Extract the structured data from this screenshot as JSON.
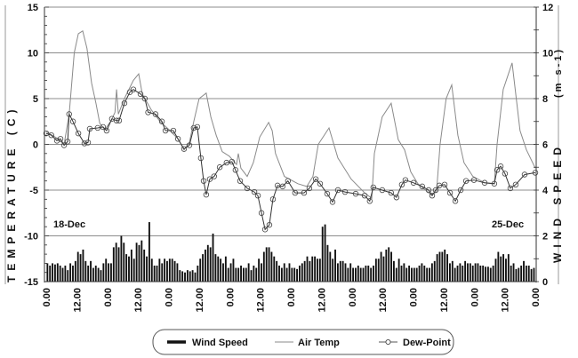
{
  "chart_data": {
    "type": "line",
    "title": "",
    "y_left": {
      "label": "TEMPERATURE (C)",
      "range": [
        -15,
        15
      ],
      "ticks": [
        "15",
        "10",
        "5",
        "0",
        "-5",
        "-10",
        "-15"
      ]
    },
    "y_right": {
      "label": "WIND SPEED",
      "unit_label": "(m s-1)",
      "range": [
        0,
        12
      ],
      "ticks": [
        "12",
        "10",
        "8",
        "6",
        "4",
        "2",
        "0"
      ]
    },
    "x_axis": {
      "unit": "hours since 18-Dec 0.00",
      "range": [
        0,
        192
      ],
      "tick_labels": [
        "0.00",
        "12.00",
        "0.00",
        "12.00",
        "0.00",
        "12.00",
        "0.00",
        "12.00",
        "0.00",
        "12.00",
        "0.00",
        "12.00",
        "0.00",
        "12.00",
        "0.00",
        "12.00",
        "0.00"
      ]
    },
    "annotations": [
      "18-Dec",
      "25-Dec"
    ],
    "grid": true,
    "legend": {
      "placement": "bottom",
      "items": [
        "Wind Speed",
        "Air Temp",
        "Dew-Point"
      ]
    },
    "series": [
      {
        "name": "Air Temp",
        "axis": "left",
        "type": "line",
        "color": "#8a8a8a",
        "points": [
          [
            0,
            1.4
          ],
          [
            3.5,
            0.8
          ],
          [
            7,
            0.0
          ],
          [
            9,
            3.3
          ],
          [
            11,
            10
          ],
          [
            12.6,
            12.1
          ],
          [
            14.3,
            12.4
          ],
          [
            16,
            10.5
          ],
          [
            17.8,
            6.7
          ],
          [
            19.5,
            4.5
          ],
          [
            21,
            2.3
          ],
          [
            23,
            1.6
          ],
          [
            25.5,
            2.6
          ],
          [
            27,
            3.5
          ],
          [
            27.6,
            6.0
          ],
          [
            28.3,
            3.3
          ],
          [
            30.7,
            5
          ],
          [
            34.2,
            7
          ],
          [
            36.3,
            7.7
          ],
          [
            37.7,
            5.5
          ],
          [
            41.2,
            3.8
          ],
          [
            44.7,
            2.5
          ],
          [
            48.2,
            1.6
          ],
          [
            51.7,
            0.6
          ],
          [
            54.1,
            -0.6
          ],
          [
            56.2,
            0.2
          ],
          [
            57.9,
            2.5
          ],
          [
            60,
            5
          ],
          [
            62.8,
            5.6
          ],
          [
            64.6,
            3
          ],
          [
            66.7,
            1
          ],
          [
            69.1,
            -0.8
          ],
          [
            71.9,
            -1.3
          ],
          [
            74.7,
            -2.2
          ],
          [
            75.4,
            -1
          ],
          [
            76.4,
            -2.6
          ],
          [
            78.9,
            -3.5
          ],
          [
            81.3,
            -2
          ],
          [
            83.8,
            0.8
          ],
          [
            87.3,
            2.4
          ],
          [
            88.7,
            1.5
          ],
          [
            90,
            -1
          ],
          [
            93.5,
            -3.5
          ],
          [
            98.8,
            -4.3
          ],
          [
            102.3,
            -4.6
          ],
          [
            104.7,
            -3.5
          ],
          [
            106.8,
            0
          ],
          [
            111,
            1.8
          ],
          [
            114.5,
            -1.5
          ],
          [
            119.7,
            -3.8
          ],
          [
            125,
            -5.3
          ],
          [
            127.8,
            -5.9
          ],
          [
            128.8,
            -1
          ],
          [
            131.9,
            3
          ],
          [
            135.4,
            4.5
          ],
          [
            138.2,
            0.5
          ],
          [
            140.7,
            -0.6
          ],
          [
            143.1,
            -3
          ],
          [
            145.9,
            -4.3
          ],
          [
            151.1,
            -5.5
          ],
          [
            153.2,
            -5.2
          ],
          [
            154.6,
            0
          ],
          [
            157,
            5
          ],
          [
            159.2,
            6.5
          ],
          [
            161.6,
            1
          ],
          [
            164,
            -2
          ],
          [
            167.5,
            -3.5
          ],
          [
            172.1,
            -4.2
          ],
          [
            175.9,
            -4.3
          ],
          [
            177,
            0
          ],
          [
            179.4,
            6
          ],
          [
            182.9,
            8.9
          ],
          [
            186,
            1.5
          ],
          [
            188.5,
            -0.6
          ],
          [
            192,
            -2.6
          ]
        ]
      },
      {
        "name": "Dew-Point",
        "axis": "left",
        "type": "line-marker",
        "color": "#333333",
        "points": [
          [
            0,
            1.2
          ],
          [
            2,
            1.0
          ],
          [
            4.2,
            0.4
          ],
          [
            5.6,
            0.6
          ],
          [
            7,
            -0.1
          ],
          [
            8.4,
            0.3
          ],
          [
            9,
            3.3
          ],
          [
            10.5,
            2.5
          ],
          [
            12.6,
            1.2
          ],
          [
            15,
            0.1
          ],
          [
            16.4,
            0.2
          ],
          [
            17.1,
            1.7
          ],
          [
            20.2,
            1.8
          ],
          [
            22.3,
            1.9
          ],
          [
            23.7,
            1.5
          ],
          [
            25.8,
            2.8
          ],
          [
            27.6,
            2.6
          ],
          [
            28.6,
            2.6
          ],
          [
            30.7,
            4.5
          ],
          [
            32.8,
            5.7
          ],
          [
            34.2,
            6.0
          ],
          [
            37,
            5.5
          ],
          [
            38.7,
            5.0
          ],
          [
            40,
            3.5
          ],
          [
            42.9,
            3.3
          ],
          [
            45.4,
            2.5
          ],
          [
            46.8,
            1.5
          ],
          [
            49.9,
            1.5
          ],
          [
            51.7,
            0.6
          ],
          [
            54.1,
            -0.5
          ],
          [
            56.2,
            -0.1
          ],
          [
            57.9,
            1.8
          ],
          [
            59.3,
            1.9
          ],
          [
            60.7,
            -1.5
          ],
          [
            61.8,
            -4
          ],
          [
            62.8,
            -5.5
          ],
          [
            64.2,
            -3.8
          ],
          [
            65.9,
            -3.5
          ],
          [
            68.1,
            -2.5
          ],
          [
            70.8,
            -2.0
          ],
          [
            72.9,
            -1.9
          ],
          [
            74.3,
            -2.8
          ],
          [
            76.1,
            -4
          ],
          [
            78.9,
            -4.8
          ],
          [
            81.7,
            -5.2
          ],
          [
            83.1,
            -5.6
          ],
          [
            84.5,
            -7.5
          ],
          [
            85.9,
            -9.3
          ],
          [
            87.6,
            -8.8
          ],
          [
            89,
            -6
          ],
          [
            90.8,
            -4.5
          ],
          [
            92.8,
            -4.6
          ],
          [
            94.9,
            -4.0
          ],
          [
            97.7,
            -5.3
          ],
          [
            101.2,
            -5.3
          ],
          [
            103.3,
            -4.8
          ],
          [
            105.8,
            -3.8
          ],
          [
            107.5,
            -4.3
          ],
          [
            110.3,
            -5.4
          ],
          [
            112.4,
            -6.3
          ],
          [
            114.5,
            -5.0
          ],
          [
            117.3,
            -5.2
          ],
          [
            121.5,
            -5.4
          ],
          [
            125,
            -5.6
          ],
          [
            127,
            -6.2
          ],
          [
            128.4,
            -4.7
          ],
          [
            131.9,
            -5.0
          ],
          [
            135.4,
            -5.3
          ],
          [
            137.5,
            -5.8
          ],
          [
            139.6,
            -4.4
          ],
          [
            141,
            -3.9
          ],
          [
            144.2,
            -4.2
          ],
          [
            147.6,
            -4.6
          ],
          [
            150.1,
            -5.0
          ],
          [
            151.5,
            -5.6
          ],
          [
            152.9,
            -5.0
          ],
          [
            154.3,
            -4.5
          ],
          [
            156.4,
            -4.4
          ],
          [
            158.5,
            -5.3
          ],
          [
            160.6,
            -6.2
          ],
          [
            162.7,
            -5.0
          ],
          [
            164.8,
            -4.0
          ],
          [
            167.9,
            -3.9
          ],
          [
            172.1,
            -4.2
          ],
          [
            175.9,
            -4.3
          ],
          [
            177,
            -2.8
          ],
          [
            178.4,
            -2.4
          ],
          [
            180.1,
            -3.2
          ],
          [
            182.2,
            -4.8
          ],
          [
            184.3,
            -4.4
          ],
          [
            187.8,
            -3.3
          ],
          [
            192,
            -3.1
          ]
        ]
      },
      {
        "name": "Wind Speed",
        "axis": "right",
        "type": "bar",
        "color": "#111111",
        "interval_hours": 1,
        "values": [
          0.8,
          0.7,
          0.8,
          0.75,
          0.8,
          0.7,
          0.6,
          0.7,
          0.5,
          0.8,
          0.7,
          0.9,
          1.3,
          1.2,
          1.4,
          0.9,
          0.7,
          0.9,
          0.6,
          0.7,
          0.6,
          0.5,
          0.8,
          1.0,
          0.8,
          0.8,
          1.5,
          1.7,
          1.5,
          2.0,
          1.7,
          1.2,
          1.1,
          1.4,
          1.0,
          1.7,
          1.6,
          1.8,
          1.4,
          1.1,
          2.6,
          1.0,
          0.7,
          0.7,
          1.0,
          0.8,
          1.0,
          0.9,
          1.0,
          1.0,
          0.9,
          0.8,
          0.5,
          0.45,
          0.4,
          0.5,
          0.45,
          0.5,
          0.4,
          0.7,
          1.0,
          1.2,
          1.4,
          1.6,
          1.5,
          2.1,
          1.2,
          1.1,
          1.0,
          0.8,
          1.1,
          0.6,
          0.8,
          1.0,
          0.6,
          0.6,
          0.7,
          0.6,
          0.6,
          0.8,
          0.5,
          0.7,
          0.6,
          1.0,
          0.8,
          1.3,
          1.5,
          1.5,
          1.3,
          1.1,
          0.9,
          0.7,
          0.6,
          0.8,
          0.6,
          0.8,
          0.6,
          0.6,
          0.55,
          0.7,
          0.8,
          0.9,
          1.1,
          0.9,
          1.1,
          1.1,
          1.0,
          1.0,
          2.4,
          2.5,
          1.6,
          1.3,
          1.0,
          1.4,
          0.8,
          0.9,
          0.9,
          0.8,
          0.6,
          0.8,
          0.6,
          0.6,
          0.7,
          0.6,
          0.6,
          0.7,
          0.7,
          0.6,
          0.7,
          1.0,
          1.0,
          1.3,
          1.1,
          1.4,
          1.5,
          1.3,
          0.9,
          0.6,
          1.0,
          0.7,
          0.8,
          0.6,
          0.7,
          0.6,
          0.6,
          0.6,
          0.7,
          0.8,
          0.7,
          0.6,
          0.6,
          0.8,
          0.9,
          1.2,
          1.3,
          1.3,
          1.4,
          1.2,
          0.8,
          0.9,
          0.6,
          0.7,
          0.8,
          0.7,
          0.9,
          0.8,
          0.8,
          0.7,
          0.8,
          0.8,
          0.7,
          0.7,
          0.65,
          0.65,
          0.6,
          0.7,
          1.0,
          1.3,
          1.1,
          1.2,
          1.0,
          1.2,
          0.7,
          0.8,
          0.55,
          0.6,
          0.7,
          0.9,
          0.7,
          0.7,
          0.55,
          0.6
        ]
      }
    ]
  }
}
